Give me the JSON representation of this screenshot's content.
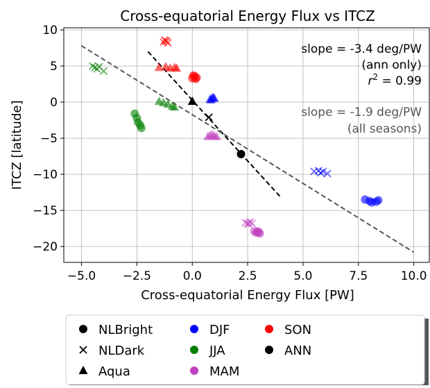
{
  "chart_data": {
    "type": "scatter",
    "title": "Cross-equatorial Energy Flux vs ITCZ",
    "x_label": "Cross-equatorial Energy Flux [PW]",
    "y_label": "ITCZ [latitude]",
    "xlim": [
      -5.8,
      10.7
    ],
    "ylim": [
      -22.2,
      10.3
    ],
    "xticks": [
      {
        "value": -5,
        "label": "−5.0"
      },
      {
        "value": -2.5,
        "label": "−2.5"
      },
      {
        "value": 0,
        "label": "0.0"
      },
      {
        "value": 2.5,
        "label": "2.5"
      },
      {
        "value": 5,
        "label": "5.0"
      },
      {
        "value": 7.5,
        "label": "7.5"
      },
      {
        "value": 10,
        "label": "10.0"
      }
    ],
    "yticks": [
      10,
      5,
      0,
      {
        "value": -5,
        "label": "−5"
      },
      {
        "value": -10,
        "label": "−10"
      },
      {
        "value": -15,
        "label": "−15"
      },
      {
        "value": -20,
        "label": "−20"
      }
    ],
    "grid": true,
    "markers": [
      {
        "name": "NLBright",
        "shape": "circle"
      },
      {
        "name": "NLDark",
        "shape": "x"
      },
      {
        "name": "Aqua",
        "shape": "triangle"
      }
    ],
    "series": [
      {
        "name": "DJF",
        "color": "#0000ff",
        "x": [
          7.8,
          8.0,
          8.1,
          8.3,
          8.4,
          5.5,
          5.7,
          5.8,
          5.9,
          6.1,
          0.8,
          0.9,
          1.0,
          0.85,
          0.95
        ],
        "y": [
          -13.5,
          -13.7,
          -13.9,
          -13.8,
          -13.6,
          -9.6,
          -9.5,
          -9.8,
          -9.6,
          -9.9,
          0.4,
          0.6,
          0.5,
          0.3,
          0.6
        ],
        "marker": [
          0,
          0,
          0,
          0,
          0,
          1,
          1,
          1,
          1,
          1,
          2,
          2,
          2,
          2,
          2
        ]
      },
      {
        "name": "JJA",
        "color": "#008000",
        "x": [
          -2.6,
          -2.5,
          -2.45,
          -2.35,
          -2.3,
          -4.5,
          -4.4,
          -4.3,
          -4.2,
          -4.0,
          -1.5,
          -1.3,
          -1.1,
          -0.9,
          -0.8
        ],
        "y": [
          -1.6,
          -2.2,
          -2.8,
          -3.2,
          -3.6,
          5.0,
          4.8,
          4.6,
          4.9,
          4.3,
          0.1,
          -0.1,
          -0.3,
          -0.6,
          -0.7
        ],
        "marker": [
          0,
          0,
          0,
          0,
          0,
          1,
          1,
          1,
          1,
          1,
          2,
          2,
          2,
          2,
          2
        ]
      },
      {
        "name": "MAM",
        "color": "#bf40bf",
        "x": [
          2.8,
          2.9,
          3.0,
          3.05,
          2.95,
          2.4,
          2.5,
          2.6,
          2.7,
          2.55,
          0.7,
          0.8,
          0.9,
          1.0,
          1.1
        ],
        "y": [
          -17.9,
          -18.1,
          -18.0,
          -18.2,
          -17.9,
          -16.7,
          -16.8,
          -16.6,
          -16.8,
          -16.9,
          -4.8,
          -4.6,
          -4.5,
          -4.7,
          -4.8
        ],
        "marker": [
          0,
          0,
          0,
          0,
          0,
          1,
          1,
          1,
          1,
          1,
          2,
          2,
          2,
          2,
          2
        ]
      },
      {
        "name": "SON",
        "color": "#ff0000",
        "x": [
          0.0,
          0.1,
          0.2,
          0.05,
          0.15,
          -1.3,
          -1.2,
          -1.1,
          -1.25,
          -1.15,
          -1.5,
          -1.2,
          -1.0,
          -0.8,
          -0.7
        ],
        "y": [
          3.3,
          3.6,
          3.4,
          3.7,
          3.2,
          8.3,
          8.5,
          8.2,
          8.6,
          8.4,
          4.8,
          4.9,
          4.7,
          4.8,
          4.7
        ],
        "marker": [
          0,
          0,
          0,
          0,
          0,
          1,
          1,
          1,
          1,
          1,
          2,
          2,
          2,
          2,
          2
        ]
      },
      {
        "name": "ANN",
        "color": "#000000",
        "x": [
          2.2,
          0.75,
          0.0
        ],
        "y": [
          -7.2,
          -2.1,
          0.1
        ],
        "marker": [
          0,
          1,
          2
        ]
      }
    ],
    "fit_lines": [
      {
        "x": [
          -2.0,
          4.0
        ],
        "y": [
          7.0,
          -13.2
        ],
        "color": "#000000"
      },
      {
        "x": [
          -5.0,
          10.0
        ],
        "y": [
          7.8,
          -20.8
        ],
        "color": "#555555"
      }
    ],
    "annotations": {
      "ann_slope": "slope = -3.4 deg/PW",
      "ann_note": "(ann only)",
      "r2": {
        "base": "r",
        "sup": "2",
        "rest": " = 0.99"
      },
      "all_slope": "slope = -1.9 deg/PW",
      "all_note": "(all seasons)"
    }
  }
}
